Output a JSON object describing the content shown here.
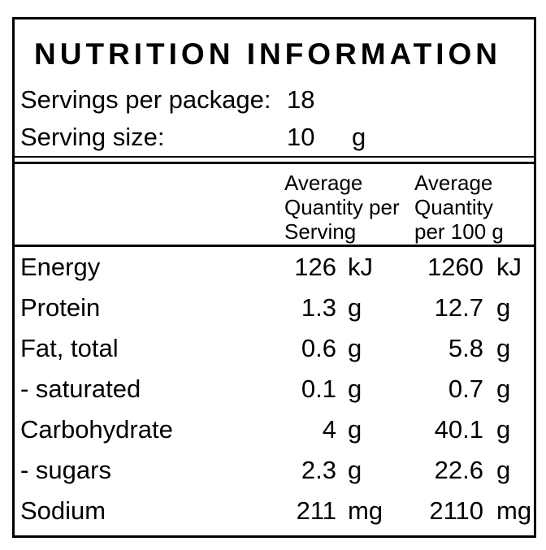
{
  "panel": {
    "title": "NUTRITION INFORMATION",
    "servings": {
      "label": "Servings per package:",
      "value": "18"
    },
    "serving_size": {
      "label": "Serving size:",
      "value": "10",
      "unit": "g"
    },
    "columns": {
      "per_serving_header": "Average Quantity per Serving",
      "per_100g_header": "Average Quantity per 100 g"
    },
    "rows": [
      {
        "nutrient": "Energy",
        "per_serving": "126",
        "per_serving_unit": "kJ",
        "per_100g": "1260",
        "per_100g_unit": "kJ"
      },
      {
        "nutrient": "Protein",
        "per_serving": "1.3",
        "per_serving_unit": "g",
        "per_100g": "12.7",
        "per_100g_unit": "g"
      },
      {
        "nutrient": "Fat, total",
        "per_serving": "0.6",
        "per_serving_unit": "g",
        "per_100g": "5.8",
        "per_100g_unit": "g"
      },
      {
        "nutrient": "- saturated",
        "per_serving": "0.1",
        "per_serving_unit": "g",
        "per_100g": "0.7",
        "per_100g_unit": "g"
      },
      {
        "nutrient": "Carbohydrate",
        "per_serving": "4",
        "per_serving_unit": "g",
        "per_100g": "40.1",
        "per_100g_unit": "g"
      },
      {
        "nutrient": "- sugars",
        "per_serving": "2.3",
        "per_serving_unit": "g",
        "per_100g": "22.6",
        "per_100g_unit": "g"
      },
      {
        "nutrient": "Sodium",
        "per_serving": "211",
        "per_serving_unit": "mg",
        "per_100g": "2110",
        "per_100g_unit": "mg"
      }
    ],
    "colors": {
      "text": "#000000",
      "border": "#000000",
      "background": "#ffffff"
    }
  }
}
